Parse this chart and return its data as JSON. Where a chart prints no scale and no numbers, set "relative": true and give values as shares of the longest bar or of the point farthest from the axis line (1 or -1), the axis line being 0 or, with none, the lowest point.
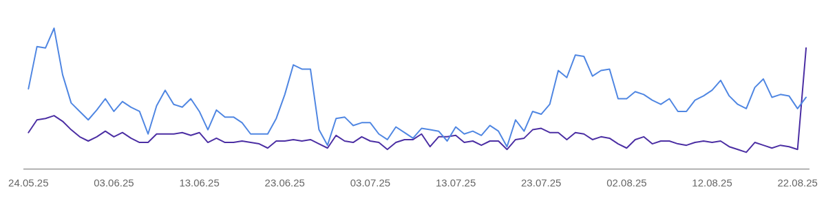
{
  "chart_data": {
    "type": "line",
    "relative": true,
    "legend": false,
    "marker": "none",
    "line_style": "solid",
    "x": [
      "--05-24",
      "--05-25",
      "--05-26",
      "--05-27",
      "--05-28",
      "--05-29",
      "--05-30",
      "--05-31",
      "--06-01",
      "--06-02",
      "--06-03",
      "--06-04",
      "--06-05",
      "--06-06",
      "--06-07",
      "--06-08",
      "--06-09",
      "--06-10",
      "--06-11",
      "--06-12",
      "--06-13",
      "--06-14",
      "--06-15",
      "--06-16",
      "--06-17",
      "--06-18",
      "--06-19",
      "--06-20",
      "--06-21",
      "--06-22",
      "--06-23",
      "--06-24",
      "--06-25",
      "--06-26",
      "--06-27",
      "--06-28",
      "--06-29",
      "--06-30",
      "--07-01",
      "--07-02",
      "--07-03",
      "--07-04",
      "--07-05",
      "--07-06",
      "--07-07",
      "--07-08",
      "--07-09",
      "--07-10",
      "--07-11",
      "--07-12",
      "--07-13",
      "--07-14",
      "--07-15",
      "--07-16",
      "--07-17",
      "--07-18",
      "--07-19",
      "--07-20",
      "--07-21",
      "--07-22",
      "--07-23",
      "--07-24",
      "--07-25",
      "--07-26",
      "--07-27",
      "--07-28",
      "--07-29",
      "--07-30",
      "--07-31",
      "--08-01",
      "--08-02",
      "--08-03",
      "--08-04",
      "--08-05",
      "--08-06",
      "--08-07",
      "--08-08",
      "--08-09",
      "--08-10",
      "--08-11",
      "--08-12",
      "--08-13",
      "--08-14",
      "--08-15",
      "--08-16",
      "--08-17",
      "--08-18",
      "--08-19",
      "--08-20",
      "--08-21",
      "--08-22",
      "--08-23"
    ],
    "xlim": [
      "--05-23T12:00",
      "--08-23T08:00"
    ],
    "xticks": [
      {
        "value": "--05-24",
        "label": "24.05.25"
      },
      {
        "value": "--06-03",
        "label": "03.06.25"
      },
      {
        "value": "--06-13",
        "label": "13.06.25"
      },
      {
        "value": "--06-23",
        "label": "23.06.25"
      },
      {
        "value": "--07-03",
        "label": "03.07.25"
      },
      {
        "value": "--07-13",
        "label": "13.07.25"
      },
      {
        "value": "--07-23",
        "label": "23.07.25"
      },
      {
        "value": "--08-02",
        "label": "02.08.25"
      },
      {
        "value": "--08-12",
        "label": "12.08.25"
      },
      {
        "value": "--08-22",
        "label": "22.08.25"
      }
    ],
    "series": [
      {
        "color": "#4f86e2",
        "values": [
          0.57,
          0.87,
          0.86,
          1,
          0.67,
          0.47,
          0.41,
          0.35,
          0.42,
          0.5,
          0.41,
          0.48,
          0.44,
          0.41,
          0.25,
          0.45,
          0.56,
          0.46,
          0.44,
          0.5,
          0.41,
          0.28,
          0.42,
          0.37,
          0.37,
          0.33,
          0.25,
          0.25,
          0.25,
          0.36,
          0.53,
          0.74,
          0.71,
          0.71,
          0.28,
          0.17,
          0.36,
          0.37,
          0.31,
          0.33,
          0.33,
          0.25,
          0.21,
          0.3,
          0.26,
          0.22,
          0.29,
          0.28,
          0.27,
          0.2,
          0.3,
          0.25,
          0.27,
          0.24,
          0.31,
          0.27,
          0.16,
          0.35,
          0.27,
          0.41,
          0.39,
          0.46,
          0.7,
          0.65,
          0.81,
          0.8,
          0.66,
          0.7,
          0.71,
          0.5,
          0.5,
          0.55,
          0.53,
          0.49,
          0.46,
          0.5,
          0.41,
          0.41,
          0.49,
          0.52,
          0.56,
          0.63,
          0.52,
          0.46,
          0.43,
          0.58,
          0.64,
          0.51,
          0.53,
          0.52,
          0.43,
          0.51
        ]
      },
      {
        "color": "#4b2ea3",
        "values": [
          0.26,
          0.35,
          0.36,
          0.38,
          0.34,
          0.28,
          0.23,
          0.2,
          0.23,
          0.27,
          0.23,
          0.26,
          0.22,
          0.19,
          0.19,
          0.25,
          0.25,
          0.25,
          0.26,
          0.24,
          0.26,
          0.19,
          0.22,
          0.19,
          0.19,
          0.2,
          0.19,
          0.18,
          0.15,
          0.2,
          0.2,
          0.21,
          0.2,
          0.21,
          0.18,
          0.15,
          0.24,
          0.2,
          0.19,
          0.23,
          0.2,
          0.19,
          0.14,
          0.19,
          0.21,
          0.21,
          0.25,
          0.16,
          0.23,
          0.23,
          0.24,
          0.19,
          0.2,
          0.17,
          0.2,
          0.2,
          0.14,
          0.21,
          0.22,
          0.28,
          0.29,
          0.26,
          0.26,
          0.21,
          0.26,
          0.25,
          0.21,
          0.23,
          0.22,
          0.18,
          0.15,
          0.21,
          0.23,
          0.18,
          0.2,
          0.2,
          0.18,
          0.17,
          0.19,
          0.2,
          0.19,
          0.2,
          0.16,
          0.14,
          0.12,
          0.19,
          0.17,
          0.15,
          0.17,
          0.16,
          0.14,
          0.86
        ]
      }
    ]
  }
}
